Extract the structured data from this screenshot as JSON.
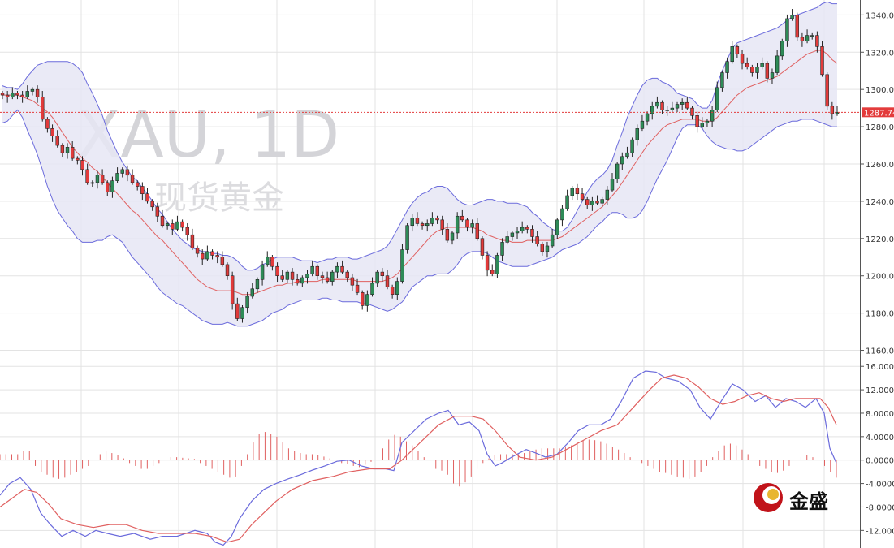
{
  "chart_data": [
    {
      "type": "candlestick",
      "watermark": "XAU, 1D",
      "watermark_sub": "现货黄金",
      "y_ticks": [
        "1340.00",
        "1320.00",
        "1300.00",
        "1280.00",
        "1260.00",
        "1240.00",
        "1220.00",
        "1200.00",
        "1180.00",
        "1160.00"
      ],
      "ylim": [
        1155,
        1348
      ],
      "grid": true,
      "current_price": "1287.74",
      "current_price_value": 1287.74,
      "colors": {
        "up": "#2e8b57",
        "down": "#e33b3b",
        "band_fill": "#e6e6f4",
        "band_line": "#6b6bdc",
        "mid_line": "#e06060",
        "current_line": "#e33b3b"
      },
      "close": [
        1297,
        1296,
        1298,
        1297,
        1296,
        1299,
        1300,
        1296,
        1284,
        1279,
        1275,
        1270,
        1266,
        1269,
        1263,
        1262,
        1257,
        1250,
        1250,
        1254,
        1250,
        1245,
        1251,
        1255,
        1257,
        1254,
        1250,
        1248,
        1244,
        1240,
        1237,
        1232,
        1227,
        1228,
        1225,
        1229,
        1226,
        1222,
        1215,
        1212,
        1209,
        1213,
        1211,
        1210,
        1206,
        1200,
        1185,
        1177,
        1183,
        1189,
        1193,
        1198,
        1206,
        1210,
        1205,
        1200,
        1198,
        1202,
        1198,
        1196,
        1199,
        1201,
        1205,
        1200,
        1199,
        1197,
        1202,
        1205,
        1202,
        1199,
        1195,
        1191,
        1184,
        1190,
        1196,
        1202,
        1200,
        1194,
        1190,
        1197,
        1214,
        1227,
        1231,
        1228,
        1227,
        1228,
        1231,
        1230,
        1225,
        1219,
        1223,
        1232,
        1230,
        1226,
        1228,
        1220,
        1211,
        1203,
        1201,
        1211,
        1218,
        1221,
        1223,
        1224,
        1226,
        1225,
        1221,
        1217,
        1213,
        1216,
        1222,
        1230,
        1236,
        1243,
        1247,
        1244,
        1241,
        1238,
        1240,
        1239,
        1241,
        1246,
        1252,
        1260,
        1264,
        1266,
        1273,
        1279,
        1283,
        1287,
        1291,
        1293,
        1289,
        1289,
        1290,
        1292,
        1293,
        1290,
        1286,
        1280,
        1282,
        1283,
        1289,
        1301,
        1309,
        1315,
        1323,
        1319,
        1314,
        1312,
        1309,
        1312,
        1314,
        1306,
        1309,
        1318,
        1326,
        1338,
        1340,
        1328,
        1326,
        1329,
        1329,
        1323,
        1308,
        1291,
        1287,
        1287.74
      ],
      "upper": [
        1302,
        1301,
        1301,
        1300,
        1303,
        1307,
        1310,
        1313,
        1314,
        1315,
        1315,
        1315,
        1315,
        1315,
        1314,
        1312,
        1309,
        1303,
        1298,
        1292,
        1286,
        1278,
        1272,
        1266,
        1261,
        1257,
        1253,
        1251,
        1247,
        1244,
        1240,
        1236,
        1233,
        1229,
        1225,
        1222,
        1219,
        1217,
        1215,
        1214,
        1213,
        1213,
        1212,
        1212,
        1211,
        1211,
        1210,
        1208,
        1205,
        1203,
        1203,
        1204,
        1206,
        1207,
        1209,
        1210,
        1210,
        1210,
        1210,
        1209,
        1208,
        1208,
        1208,
        1207,
        1208,
        1209,
        1209,
        1210,
        1210,
        1210,
        1209,
        1209,
        1210,
        1211,
        1212,
        1213,
        1214,
        1216,
        1220,
        1225,
        1230,
        1235,
        1239,
        1242,
        1244,
        1245,
        1247,
        1248,
        1248,
        1247,
        1244,
        1241,
        1239,
        1238,
        1238,
        1239,
        1240,
        1241,
        1241,
        1240,
        1240,
        1239,
        1239,
        1239,
        1238,
        1237,
        1234,
        1232,
        1229,
        1227,
        1225,
        1224,
        1224,
        1226,
        1230,
        1235,
        1240,
        1245,
        1249,
        1252,
        1254,
        1257,
        1262,
        1270,
        1277,
        1285,
        1291,
        1297,
        1302,
        1305,
        1306,
        1306,
        1304,
        1303,
        1301,
        1298,
        1297,
        1296,
        1295,
        1292,
        1290,
        1290,
        1294,
        1303,
        1310,
        1316,
        1322,
        1325,
        1326,
        1327,
        1328,
        1329,
        1330,
        1331,
        1332,
        1333,
        1335,
        1337,
        1339,
        1340,
        1341,
        1342,
        1343,
        1344,
        1346,
        1347,
        1346,
        1346
      ],
      "lower": [
        1282,
        1283,
        1286,
        1289,
        1285,
        1278,
        1272,
        1265,
        1257,
        1248,
        1241,
        1235,
        1231,
        1227,
        1224,
        1220,
        1218,
        1218,
        1218,
        1219,
        1219,
        1221,
        1222,
        1220,
        1218,
        1214,
        1210,
        1207,
        1204,
        1201,
        1198,
        1194,
        1191,
        1189,
        1187,
        1185,
        1184,
        1182,
        1180,
        1178,
        1176,
        1175,
        1174,
        1174,
        1174,
        1175,
        1174,
        1173,
        1173,
        1173,
        1174,
        1175,
        1176,
        1178,
        1180,
        1181,
        1182,
        1184,
        1185,
        1186,
        1187,
        1187,
        1187,
        1187,
        1188,
        1188,
        1187,
        1187,
        1186,
        1186,
        1186,
        1186,
        1185,
        1185,
        1184,
        1183,
        1182,
        1181,
        1182,
        1184,
        1186,
        1190,
        1194,
        1196,
        1198,
        1200,
        1200,
        1201,
        1201,
        1201,
        1203,
        1206,
        1210,
        1212,
        1213,
        1213,
        1213,
        1212,
        1210,
        1208,
        1207,
        1206,
        1205,
        1205,
        1205,
        1205,
        1206,
        1207,
        1208,
        1209,
        1210,
        1212,
        1214,
        1215,
        1216,
        1217,
        1219,
        1221,
        1224,
        1227,
        1229,
        1232,
        1234,
        1234,
        1233,
        1231,
        1231,
        1232,
        1235,
        1240,
        1246,
        1252,
        1257,
        1262,
        1268,
        1274,
        1279,
        1281,
        1281,
        1281,
        1279,
        1275,
        1272,
        1270,
        1269,
        1268,
        1268,
        1267,
        1267,
        1268,
        1270,
        1272,
        1274,
        1276,
        1278,
        1280,
        1281,
        1282,
        1283,
        1283,
        1284,
        1284,
        1284,
        1283,
        1282,
        1281,
        1280,
        1280
      ],
      "mid": [
        1297,
        1297,
        1297,
        1297,
        1296,
        1295,
        1294,
        1292,
        1290,
        1288,
        1285,
        1281,
        1277,
        1273,
        1269,
        1266,
        1263,
        1261,
        1258,
        1256,
        1253,
        1250,
        1247,
        1244,
        1241,
        1238,
        1235,
        1233,
        1230,
        1227,
        1224,
        1221,
        1219,
        1216,
        1213,
        1210,
        1207,
        1204,
        1201,
        1198,
        1196,
        1194,
        1193,
        1192,
        1192,
        1192,
        1192,
        1191,
        1190,
        1190,
        1190,
        1191,
        1192,
        1193,
        1194,
        1195,
        1195,
        1196,
        1196,
        1197,
        1197,
        1197,
        1197,
        1197,
        1198,
        1198,
        1198,
        1198,
        1198,
        1198,
        1198,
        1197,
        1197,
        1197,
        1197,
        1197,
        1197,
        1198,
        1199,
        1201,
        1204,
        1207,
        1210,
        1213,
        1216,
        1219,
        1222,
        1224,
        1225,
        1226,
        1226,
        1226,
        1226,
        1226,
        1226,
        1225,
        1224,
        1222,
        1221,
        1220,
        1219,
        1219,
        1218,
        1218,
        1218,
        1219,
        1219,
        1219,
        1219,
        1219,
        1219,
        1220,
        1221,
        1223,
        1225,
        1227,
        1229,
        1231,
        1233,
        1235,
        1237,
        1240,
        1243,
        1246,
        1250,
        1254,
        1258,
        1262,
        1266,
        1270,
        1273,
        1276,
        1279,
        1281,
        1282,
        1283,
        1284,
        1284,
        1284,
        1284,
        1283,
        1283,
        1283,
        1285,
        1288,
        1291,
        1294,
        1297,
        1299,
        1301,
        1302,
        1303,
        1304,
        1305,
        1306,
        1307,
        1309,
        1311,
        1313,
        1315,
        1317,
        1319,
        1320,
        1321,
        1321,
        1319,
        1316,
        1314
      ]
    },
    {
      "type": "line",
      "y_ticks": [
        "16.0000",
        "12.0000",
        "8.0000",
        "4.0000",
        "0.0000",
        "-4.0000",
        "-8.0000",
        "-12.0000"
      ],
      "ylim": [
        -15,
        17
      ],
      "grid": true,
      "colors": {
        "macd": "#6b6bdc",
        "signal": "#e06060",
        "histogram": "#e06060"
      },
      "macd_points": [
        [
          0,
          -6
        ],
        [
          12,
          -4
        ],
        [
          25,
          -3
        ],
        [
          38,
          -5
        ],
        [
          50,
          -9
        ],
        [
          62,
          -11
        ],
        [
          76,
          -13
        ],
        [
          90,
          -12
        ],
        [
          105,
          -13
        ],
        [
          118,
          -12
        ],
        [
          132,
          -12.5
        ],
        [
          148,
          -13
        ],
        [
          165,
          -12.5
        ],
        [
          185,
          -13.5
        ],
        [
          200,
          -13
        ],
        [
          218,
          -13
        ],
        [
          240,
          -12
        ],
        [
          255,
          -12.5
        ],
        [
          265,
          -14
        ],
        [
          275,
          -14.5
        ],
        [
          285,
          -13
        ],
        [
          295,
          -10
        ],
        [
          310,
          -7
        ],
        [
          325,
          -5
        ],
        [
          340,
          -4
        ],
        [
          355,
          -3.2
        ],
        [
          370,
          -2.5
        ],
        [
          385,
          -1.7
        ],
        [
          400,
          -1
        ],
        [
          415,
          -0.2
        ],
        [
          430,
          0
        ],
        [
          445,
          -1
        ],
        [
          460,
          -1.5
        ],
        [
          475,
          -1.5
        ],
        [
          485,
          -1.8
        ],
        [
          495,
          3
        ],
        [
          510,
          5
        ],
        [
          525,
          7
        ],
        [
          540,
          8
        ],
        [
          552,
          8.5
        ],
        [
          565,
          6
        ],
        [
          578,
          6.5
        ],
        [
          590,
          5
        ],
        [
          600,
          1
        ],
        [
          610,
          -1
        ],
        [
          618,
          -0.5
        ],
        [
          630,
          0.5
        ],
        [
          648,
          1.8
        ],
        [
          660,
          1.2
        ],
        [
          672,
          0.5
        ],
        [
          686,
          1
        ],
        [
          700,
          3
        ],
        [
          712,
          5
        ],
        [
          725,
          6
        ],
        [
          740,
          6
        ],
        [
          752,
          7
        ],
        [
          765,
          10
        ],
        [
          780,
          14
        ],
        [
          795,
          15.2
        ],
        [
          808,
          15
        ],
        [
          820,
          14
        ],
        [
          835,
          13.5
        ],
        [
          850,
          12
        ],
        [
          862,
          9
        ],
        [
          875,
          7
        ],
        [
          888,
          10
        ],
        [
          902,
          13
        ],
        [
          915,
          12
        ],
        [
          930,
          10
        ],
        [
          943,
          11
        ],
        [
          955,
          9
        ],
        [
          968,
          10.5
        ],
        [
          980,
          10
        ],
        [
          992,
          9
        ],
        [
          1005,
          10.5
        ],
        [
          1015,
          8
        ],
        [
          1022,
          2
        ],
        [
          1030,
          -0.5
        ]
      ],
      "signal_points": [
        [
          0,
          -8
        ],
        [
          15,
          -6.5
        ],
        [
          30,
          -5
        ],
        [
          45,
          -5.5
        ],
        [
          60,
          -7.5
        ],
        [
          75,
          -10
        ],
        [
          95,
          -11
        ],
        [
          115,
          -11.5
        ],
        [
          135,
          -11
        ],
        [
          155,
          -11
        ],
        [
          175,
          -12
        ],
        [
          195,
          -12.5
        ],
        [
          215,
          -12.5
        ],
        [
          240,
          -12.5
        ],
        [
          260,
          -13
        ],
        [
          280,
          -14
        ],
        [
          295,
          -13.5
        ],
        [
          310,
          -11
        ],
        [
          325,
          -9
        ],
        [
          340,
          -7
        ],
        [
          360,
          -5
        ],
        [
          385,
          -3.5
        ],
        [
          410,
          -2.8
        ],
        [
          430,
          -2
        ],
        [
          455,
          -1.5
        ],
        [
          480,
          -1.5
        ],
        [
          495,
          0
        ],
        [
          510,
          2
        ],
        [
          525,
          4
        ],
        [
          540,
          6
        ],
        [
          560,
          7.5
        ],
        [
          580,
          7.5
        ],
        [
          595,
          7
        ],
        [
          610,
          5
        ],
        [
          625,
          2.5
        ],
        [
          640,
          0.5
        ],
        [
          660,
          0
        ],
        [
          680,
          0.5
        ],
        [
          700,
          2
        ],
        [
          720,
          3.5
        ],
        [
          740,
          5
        ],
        [
          760,
          6
        ],
        [
          780,
          9
        ],
        [
          800,
          12
        ],
        [
          815,
          14
        ],
        [
          830,
          14.5
        ],
        [
          845,
          14
        ],
        [
          860,
          12.5
        ],
        [
          875,
          10.5
        ],
        [
          890,
          9.5
        ],
        [
          905,
          10
        ],
        [
          920,
          11
        ],
        [
          935,
          11.5
        ],
        [
          950,
          10.5
        ],
        [
          965,
          10
        ],
        [
          980,
          10.5
        ],
        [
          995,
          10.5
        ],
        [
          1010,
          10.5
        ],
        [
          1020,
          9
        ],
        [
          1030,
          6
        ]
      ],
      "histogram": [
        1,
        1,
        1,
        1,
        1.5,
        1.5,
        -1,
        -2,
        -2.5,
        -3,
        -3.2,
        -3,
        -2.5,
        -2,
        -1.5,
        -1,
        0,
        1,
        1.5,
        1.2,
        0.8,
        0.3,
        -0.5,
        -1,
        -1.5,
        -1.5,
        -1,
        -0.5,
        0,
        0.5,
        0.5,
        0.4,
        0.3,
        0.2,
        -0.5,
        -1,
        -1.5,
        -2,
        -2.5,
        -3,
        -2.8,
        -1,
        1,
        3,
        4.5,
        4.8,
        4.5,
        4,
        3,
        2,
        1.5,
        1.2,
        1,
        1,
        0.8,
        0.6,
        0.3,
        0,
        -0.5,
        -0.7,
        -1,
        -1.2,
        -0.8,
        -0.3,
        0,
        2,
        3.5,
        4.3,
        4,
        3.2,
        2.5,
        1.5,
        0.5,
        -0.5,
        -1.5,
        -1.8,
        -2.5,
        -4,
        -4.5,
        -3.8,
        -2.8,
        -1.5,
        -0.5,
        0.3,
        0.8,
        1,
        1,
        1,
        1,
        1.2,
        1.5,
        1.8,
        2,
        2,
        2,
        2,
        2.2,
        2.5,
        3,
        3.3,
        3.5,
        3.4,
        3.2,
        2.8,
        2.3,
        1.8,
        1.2,
        0.5,
        0,
        -0.5,
        -1,
        -1.5,
        -2,
        -2.2,
        -2.5,
        -2.8,
        -3,
        -3.2,
        -2.8,
        -2,
        -1,
        0.5,
        1.5,
        2.5,
        2.8,
        2.5,
        1.8,
        1,
        0,
        -1,
        -1.5,
        -2,
        -2.2,
        -1.8,
        -1,
        0,
        0.5,
        0.8,
        0.5,
        0,
        -1,
        -2,
        -3
      ]
    }
  ],
  "logo": {
    "text": "金盛"
  }
}
